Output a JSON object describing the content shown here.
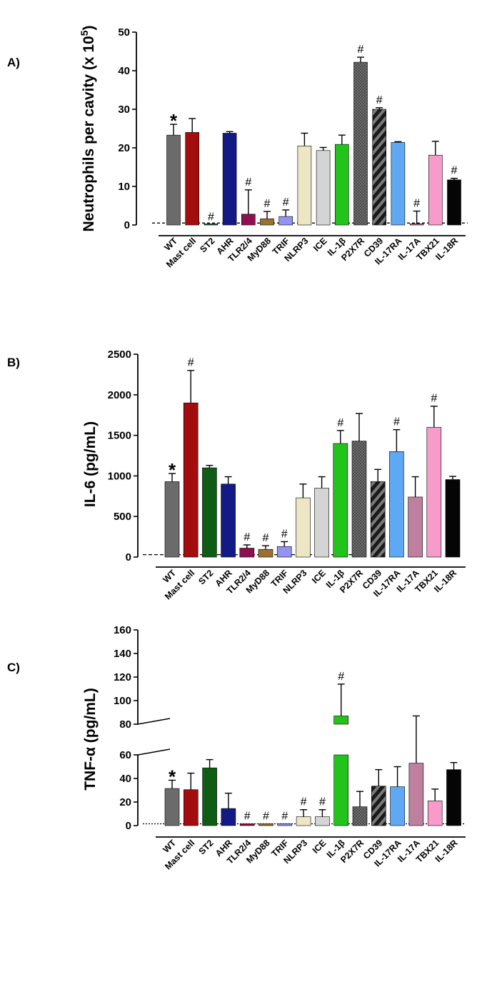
{
  "chart_data": [
    {
      "type": "bar",
      "panel_label": "A)",
      "ylabel_main": "Neutrophils per cavity (x 10",
      "ylabel_exp": "5",
      "ylabel_close": ")",
      "ylim": [
        0,
        50
      ],
      "yticks": [
        0,
        10,
        20,
        30,
        40,
        50
      ],
      "baseline": 0.5,
      "categories": [
        "WT",
        "Mast cell",
        "ST2",
        "AHR",
        "TLR2/4",
        "MyD88",
        "TRIF",
        "NLRP3",
        "ICE",
        "IL-1β",
        "P2X7R",
        "CD39",
        "IL-17RA",
        "IL-17A",
        "TBX21",
        "IL-18R"
      ],
      "values": [
        23.3,
        24.0,
        0.1,
        23.8,
        2.8,
        1.6,
        2.2,
        20.5,
        19.3,
        20.9,
        42.2,
        30.0,
        21.4,
        0.3,
        18.1,
        11.7
      ],
      "errors": [
        2.8,
        3.6,
        0.0,
        0.4,
        6.3,
        1.9,
        1.7,
        3.3,
        0.8,
        2.4,
        1.3,
        0.4,
        0.2,
        3.3,
        3.6,
        0.4
      ],
      "marks": [
        "*",
        "",
        "#",
        "",
        "#",
        "#",
        "#",
        "",
        "",
        "",
        "#",
        "#",
        "",
        "#",
        "",
        "#"
      ]
    },
    {
      "type": "bar",
      "panel_label": "B)",
      "ylabel_main": "IL-6 (pg/mL)",
      "ylim": [
        0,
        2500
      ],
      "yticks": [
        0,
        500,
        1000,
        1500,
        2000,
        2500
      ],
      "baseline": 30,
      "categories": [
        "WT",
        "Mast cell",
        "ST2",
        "AHR",
        "TLR2/4",
        "MyD88",
        "TRIF",
        "NLRP3",
        "ICE",
        "IL-1β",
        "P2X7R",
        "CD39",
        "IL-17RA",
        "IL-17A",
        "TBX21",
        "IL-18R"
      ],
      "values": [
        930,
        1900,
        1100,
        900,
        110,
        95,
        130,
        730,
        850,
        1400,
        1430,
        930,
        1300,
        740,
        1600,
        955
      ],
      "errors": [
        100,
        400,
        30,
        90,
        40,
        45,
        60,
        170,
        140,
        160,
        340,
        150,
        270,
        250,
        260,
        40
      ],
      "marks": [
        "*",
        "#",
        "",
        "",
        "#",
        "#",
        "#",
        "",
        "",
        "#",
        "",
        "",
        "#",
        "",
        "#",
        ""
      ]
    },
    {
      "type": "bar",
      "panel_label": "C)",
      "ylabel_main": "TNF-α  (pg/mL)",
      "ylim": [
        0,
        160
      ],
      "axis_break": [
        60,
        80
      ],
      "yticks": [
        0,
        20,
        40,
        60,
        80,
        100,
        120,
        140,
        160
      ],
      "baseline": 1.5,
      "categories": [
        "WT",
        "Mast cell",
        "ST2",
        "AHR",
        "TLR2/4",
        "MyD88",
        "TRIF",
        "NLRP3",
        "ICE",
        "IL-1β",
        "P2X7R",
        "CD39",
        "IL-17RA",
        "IL-17A",
        "TBX21",
        "IL-18R"
      ],
      "values": [
        31.5,
        30.5,
        49,
        14.5,
        1.5,
        1.5,
        1.5,
        7.5,
        7.5,
        87,
        16,
        33.5,
        33,
        53,
        21,
        47.5
      ],
      "errors": [
        7,
        14,
        7,
        13,
        0,
        0,
        0,
        6,
        6,
        27,
        13,
        14,
        17,
        34,
        10,
        6
      ],
      "marks": [
        "*",
        "",
        "",
        "",
        "#",
        "#",
        "#",
        "#",
        "#",
        "#",
        "",
        "",
        "",
        "",
        "",
        ""
      ]
    }
  ],
  "series_styles": [
    {
      "name": "WT",
      "fill": "#6b6b6b",
      "pattern": "none"
    },
    {
      "name": "Mast cell",
      "fill": "#a30d0d",
      "pattern": "none"
    },
    {
      "name": "ST2",
      "fill": "#0f5c14",
      "pattern": "none"
    },
    {
      "name": "AHR",
      "fill": "#131a86",
      "pattern": "none"
    },
    {
      "name": "TLR2/4",
      "fill": "#8e1050",
      "pattern": "none"
    },
    {
      "name": "MyD88",
      "fill": "#9c7030",
      "pattern": "none"
    },
    {
      "name": "TRIF",
      "fill": "#9494f0",
      "pattern": "none"
    },
    {
      "name": "NLRP3",
      "fill": "#ece6c4",
      "pattern": "none"
    },
    {
      "name": "ICE",
      "fill": "#d4d4d4",
      "pattern": "none"
    },
    {
      "name": "IL-1β",
      "fill": "#22c41c",
      "pattern": "none"
    },
    {
      "name": "P2X7R",
      "fill": "#6e6e6e",
      "pattern": "dots"
    },
    {
      "name": "CD39",
      "fill": "#555555",
      "pattern": "stripes"
    },
    {
      "name": "IL-17RA",
      "fill": "#5fa8f4",
      "pattern": "none"
    },
    {
      "name": "IL-17A",
      "fill": "#bf7f9e",
      "pattern": "none"
    },
    {
      "name": "TBX21",
      "fill": "#f79bca",
      "pattern": "none"
    },
    {
      "name": "IL-18R",
      "fill": "#050505",
      "pattern": "none"
    }
  ]
}
